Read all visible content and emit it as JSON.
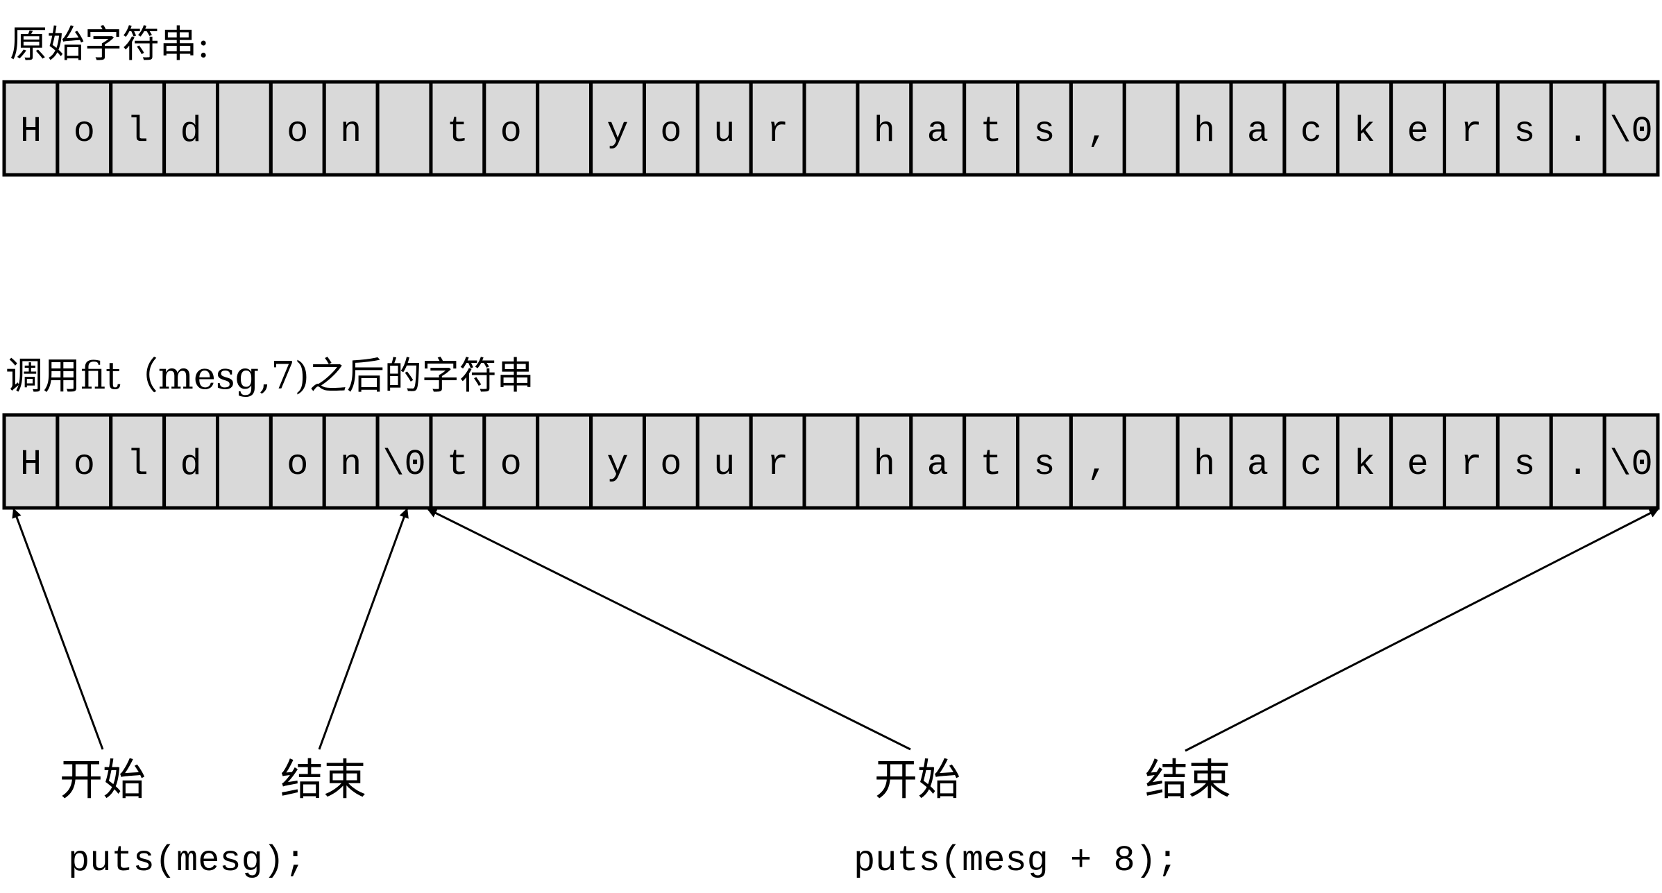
{
  "original": {
    "heading": "原始字符串:",
    "cells": [
      "H",
      "o",
      "l",
      "d",
      "",
      "o",
      "n",
      "",
      "t",
      "o",
      "",
      "y",
      "o",
      "u",
      "r",
      "",
      "h",
      "a",
      "t",
      "s",
      ",",
      "",
      "h",
      "a",
      "c",
      "k",
      "e",
      "r",
      "s",
      ".",
      "\\0"
    ]
  },
  "modified": {
    "heading": "调用fit（mesg,7)之后的字符串",
    "cells": [
      "H",
      "o",
      "l",
      "d",
      "",
      "o",
      "n",
      "\\0",
      "t",
      "o",
      "",
      "y",
      "o",
      "u",
      "r",
      "",
      "h",
      "a",
      "t",
      "s",
      ",",
      "",
      "h",
      "a",
      "c",
      "k",
      "e",
      "r",
      "s",
      ".",
      "\\0"
    ]
  },
  "annotations": [
    {
      "label": "开始",
      "points_to_cell": 0
    },
    {
      "label": "结束",
      "points_to_cell": 7
    },
    {
      "label": "开始",
      "points_to_cell": 8
    },
    {
      "label": "结束",
      "points_to_cell": 30
    }
  ],
  "code": {
    "left": "puts(mesg);",
    "right": "puts(mesg + 8);"
  },
  "colors": {
    "cell_fill": "#d9d9d9",
    "stroke": "#000000"
  }
}
